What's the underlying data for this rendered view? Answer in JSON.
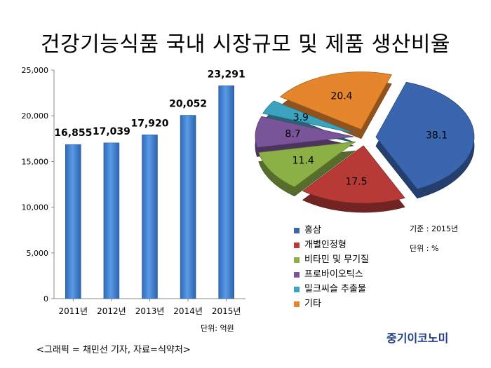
{
  "title": "건강기능식품 국내 시장규모 및 제품 생산비율",
  "bar_unit": "단위: 억원",
  "pie_year_note": "기준 : 2015년",
  "pie_unit_note": "단위 : %",
  "source": "<그래픽 = 채민선 기자, 자료=식약처>",
  "logo": "중기이코노미",
  "colors": {
    "bar": "#3f7fd3",
    "bar_edge": "#2e5f9e"
  },
  "chart_data": [
    {
      "type": "bar",
      "title": "",
      "categories": [
        "2011년",
        "2012년",
        "2013년",
        "2014년",
        "2015년"
      ],
      "values": [
        16855,
        17039,
        17920,
        20052,
        23291
      ],
      "value_labels": [
        "16,855",
        "17,039",
        "17,920",
        "20,052",
        "23,291"
      ],
      "y_ticks": [
        "0",
        "5,000",
        "10,000",
        "15,000",
        "20,000",
        "25,000"
      ],
      "ylim": [
        0,
        25000
      ],
      "grid": false,
      "xlabel": "",
      "ylabel": ""
    },
    {
      "type": "pie",
      "title": "",
      "labels": [
        "홍삼",
        "개별인정형",
        "비타민 및 무기질",
        "프로바이오틱스",
        "밀크씨슬 추출물",
        "기타"
      ],
      "values": [
        38.1,
        17.5,
        11.4,
        8.7,
        3.9,
        20.4
      ],
      "value_labels": [
        "38.1",
        "17.5",
        "11.4",
        "8.7",
        "3.9",
        "20.4"
      ],
      "colors": [
        "#3a66b0",
        "#b83a37",
        "#8cb046",
        "#7a5499",
        "#3ba3bf",
        "#e6862c"
      ],
      "legend": "right-bottom"
    }
  ]
}
